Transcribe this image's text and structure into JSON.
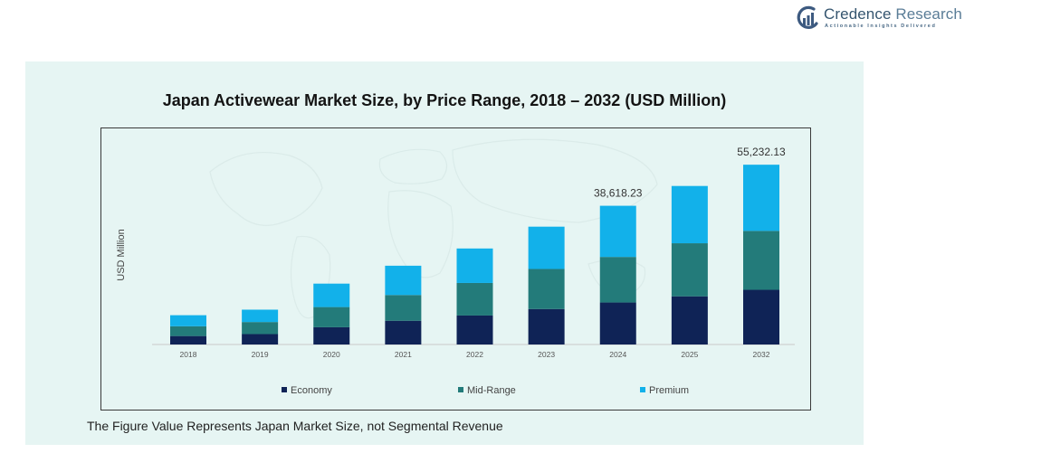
{
  "brand": {
    "name_first": "Credence",
    "name_second": "Research",
    "tagline": "Actionable Insights Delivered",
    "colors": {
      "mark": "#3d5a80",
      "text": "#35556f"
    }
  },
  "footnote": "The Figure Value Represents Japan Market Size, not Segmental Revenue",
  "chart_data": {
    "type": "bar",
    "stacked": true,
    "title": "Japan Activewear Market Size, by Price Range, 2018 – 2032 (USD Million)",
    "xlabel": "",
    "ylabel": "USD Million",
    "categories": [
      "2018",
      "2019",
      "2020",
      "2021",
      "2022",
      "2023",
      "2024",
      "2025",
      "2032"
    ],
    "series": [
      {
        "name": "Economy",
        "color": "#0f2356",
        "values": [
          2600,
          3200,
          5300,
          7300,
          8900,
          10900,
          12900,
          14800,
          16800
        ]
      },
      {
        "name": "Mid-Range",
        "color": "#237b7a",
        "values": [
          3000,
          3700,
          6200,
          7900,
          10000,
          12300,
          14000,
          16300,
          18100
        ]
      },
      {
        "name": "Premium",
        "color": "#12b1ea",
        "values": [
          3400,
          3800,
          7200,
          9000,
          10600,
          13000,
          15718.23,
          17600,
          20332.13
        ]
      }
    ],
    "total_labels": [
      {
        "category": "2024",
        "text": "38,618.23"
      },
      {
        "category": "2032",
        "text": "55,232.13"
      }
    ],
    "ylim": [
      0,
      60000
    ],
    "grid": false,
    "legend_position": "bottom"
  }
}
